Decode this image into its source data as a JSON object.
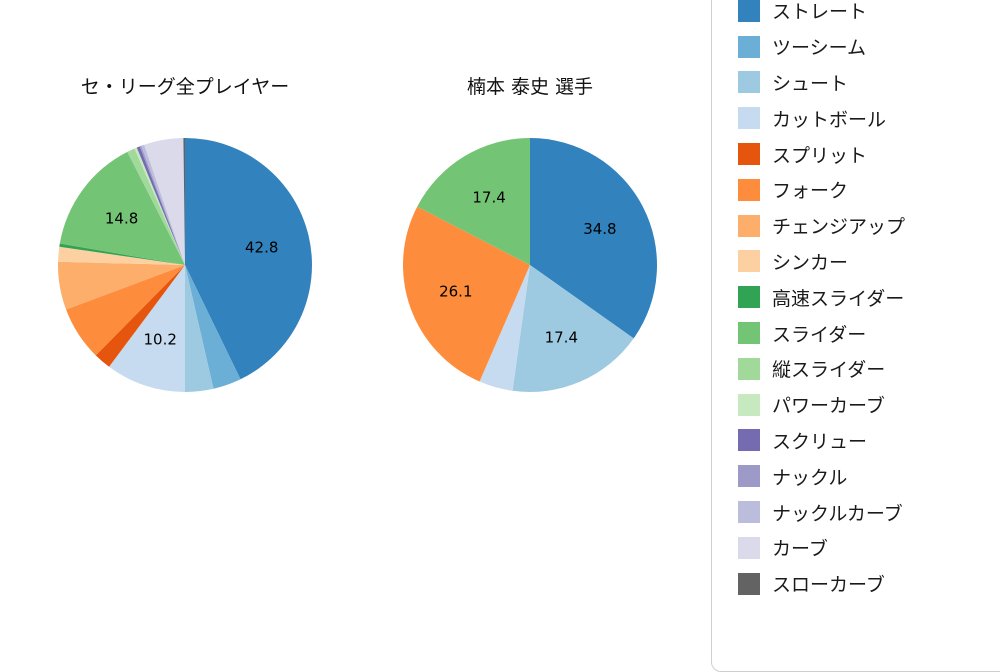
{
  "page": {
    "background": "#ffffff"
  },
  "chart_data": [
    {
      "type": "pie",
      "title": "セ・リーグ全プレイヤー",
      "unit": "percent",
      "start_angle": "12-oclock",
      "direction": "clockwise",
      "slices": [
        "ストレート",
        "ツーシーム",
        "シュート",
        "カットボール",
        "スプリット",
        "フォーク",
        "チェンジアップ",
        "シンカー",
        "高速スライダー",
        "スライダー",
        "縦スライダー",
        "パワーカーブ",
        "スクリュー",
        "ナックル",
        "ナックルカーブ",
        "カーブ",
        "スローカーブ"
      ],
      "values": [
        42.8,
        3.6,
        3.6,
        10.2,
        2.2,
        6.9,
        6.1,
        1.9,
        0.4,
        14.8,
        1.0,
        0.3,
        0.4,
        0.2,
        0.4,
        5.0,
        0.2
      ],
      "value_labels": [
        "42.8",
        "",
        "",
        "10.2",
        "",
        "",
        "",
        "",
        "",
        "14.8",
        "",
        "",
        "",
        "",
        "",
        "",
        ""
      ],
      "colors": [
        "#3182bd",
        "#6baed6",
        "#9ecae1",
        "#c6dbef",
        "#e6550d",
        "#fd8d3c",
        "#fdae6b",
        "#fdd0a2",
        "#31a354",
        "#74c476",
        "#a1d99b",
        "#c7e9c0",
        "#756bb1",
        "#9e9ac8",
        "#bcbddc",
        "#dadaeb",
        "#636363"
      ]
    },
    {
      "type": "pie",
      "title": "楠本 泰史  選手",
      "unit": "percent",
      "start_angle": "12-oclock",
      "direction": "clockwise",
      "slices": [
        "ストレート",
        "シュート",
        "カットボール",
        "フォーク",
        "スライダー"
      ],
      "values": [
        34.8,
        17.4,
        4.3,
        26.1,
        17.4
      ],
      "value_labels": [
        "34.8",
        "17.4",
        "",
        "26.1",
        "17.4"
      ],
      "colors": [
        "#3182bd",
        "#9ecae1",
        "#c6dbef",
        "#fd8d3c",
        "#74c476"
      ]
    }
  ],
  "legend": {
    "items": [
      {
        "label": "ストレート",
        "color": "#3182bd"
      },
      {
        "label": "ツーシーム",
        "color": "#6baed6"
      },
      {
        "label": "シュート",
        "color": "#9ecae1"
      },
      {
        "label": "カットボール",
        "color": "#c6dbef"
      },
      {
        "label": "スプリット",
        "color": "#e6550d"
      },
      {
        "label": "フォーク",
        "color": "#fd8d3c"
      },
      {
        "label": "チェンジアップ",
        "color": "#fdae6b"
      },
      {
        "label": "シンカー",
        "color": "#fdd0a2"
      },
      {
        "label": "高速スライダー",
        "color": "#31a354"
      },
      {
        "label": "スライダー",
        "color": "#74c476"
      },
      {
        "label": "縦スライダー",
        "color": "#a1d99b"
      },
      {
        "label": "パワーカーブ",
        "color": "#c7e9c0"
      },
      {
        "label": "スクリュー",
        "color": "#756bb1"
      },
      {
        "label": "ナックル",
        "color": "#9e9ac8"
      },
      {
        "label": "ナックルカーブ",
        "color": "#bcbddc"
      },
      {
        "label": "カーブ",
        "color": "#dadaeb"
      },
      {
        "label": "スローカーブ",
        "color": "#636363"
      }
    ]
  }
}
